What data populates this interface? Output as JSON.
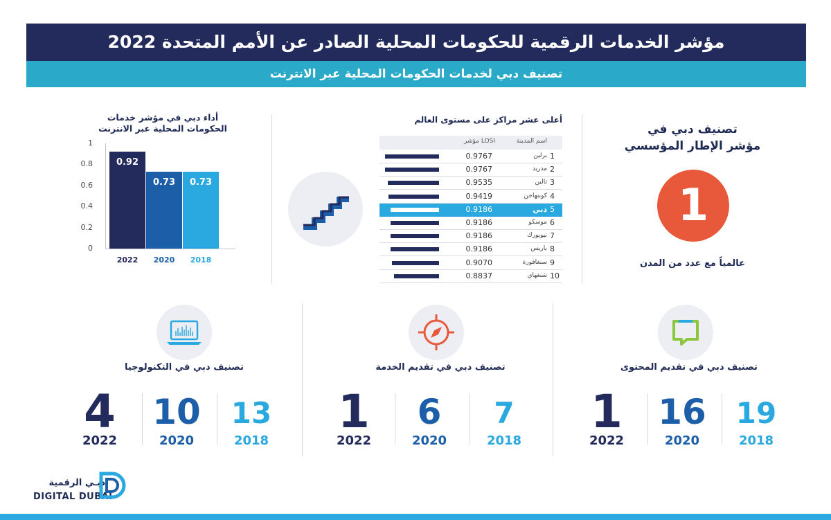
{
  "header": {
    "title": "مؤشر الخدمات الرقمية للحكومات المحلية الصادر عن الأمم المتحدة 2022",
    "subtitle": "تصنيف دبي لخدمات الحكومات المحلية عبر الانترنت"
  },
  "chart_data": {
    "type": "bar",
    "title": "أداء دبي في مؤشر خدمات الحكومات المحلية عبر الانترنت",
    "categories": [
      "2022",
      "2020",
      "2018"
    ],
    "values": [
      0.92,
      0.73,
      0.73
    ],
    "value_labels": [
      "0.92",
      "0.73",
      "0.73"
    ],
    "ylim": [
      0,
      1
    ],
    "yticks": [
      "1",
      "0.8",
      "0.6",
      "0.4",
      "0.2",
      "0"
    ],
    "colors": [
      "#232a5c",
      "#1c5fa8",
      "#2aa9e0"
    ],
    "grid": false
  },
  "ranking": {
    "title": "أعلى عشر مراكز على مستوى العالم",
    "col_city": "اسم المدينة",
    "col_losi": "مؤشر LOSI",
    "highlight_color": "#2aa9e0",
    "rows": [
      {
        "rank": "1",
        "city": "برلين",
        "losi": "0.9767",
        "score": 0.9767
      },
      {
        "rank": "2",
        "city": "مدريد",
        "losi": "0.9767",
        "score": 0.9767
      },
      {
        "rank": "3",
        "city": "تالين",
        "losi": "0.9535",
        "score": 0.9535
      },
      {
        "rank": "4",
        "city": "كوبنهاجن",
        "losi": "0.9419",
        "score": 0.9419
      },
      {
        "rank": "5",
        "city": "دبي",
        "losi": "0.9186",
        "score": 0.9186,
        "highlight": true
      },
      {
        "rank": "6",
        "city": "موسكو",
        "losi": "0.9186",
        "score": 0.9186
      },
      {
        "rank": "7",
        "city": "نيويورك",
        "losi": "0.9186",
        "score": 0.9186
      },
      {
        "rank": "8",
        "city": "باريس",
        "losi": "0.9186",
        "score": 0.9186
      },
      {
        "rank": "9",
        "city": "سنغافورة",
        "losi": "0.9070",
        "score": 0.907
      },
      {
        "rank": "10",
        "city": "شنغهاي",
        "losi": "0.8837",
        "score": 0.8837
      }
    ]
  },
  "institutional": {
    "title_line1": "تصنيف دبي في",
    "title_line2": "مؤشر الإطار المؤسسي",
    "rank": "1",
    "subtitle": "عالمياً مع عدد من المدن",
    "circle_color": "#e8583a"
  },
  "panels": {
    "technology": {
      "title": "تصنيف دبي في التكنولوجيا",
      "icon": "laptop-chart-icon",
      "values": [
        "4",
        "10",
        "13"
      ],
      "years": [
        "2022",
        "2020",
        "2018"
      ]
    },
    "service": {
      "title": "تصنيف دبي في تقديم الخدمة",
      "icon": "compass-icon",
      "values": [
        "1",
        "6",
        "7"
      ],
      "years": [
        "2022",
        "2020",
        "2018"
      ]
    },
    "content": {
      "title": "تصنيف دبي في تقديم المحتوى",
      "icon": "chat-bubble-icon",
      "values": [
        "1",
        "16",
        "19"
      ],
      "years": [
        "2022",
        "2020",
        "2018"
      ]
    }
  },
  "logo": {
    "arabic": "دبـي الرقمية",
    "english": "DIGITAL DUBAI"
  },
  "colors": {
    "navy": "#232a5c",
    "teal": "#2aa9c9",
    "blue": "#1c5fa8",
    "cyan": "#2aa9e0",
    "orange": "#e8583a",
    "green": "#8cc63f"
  }
}
